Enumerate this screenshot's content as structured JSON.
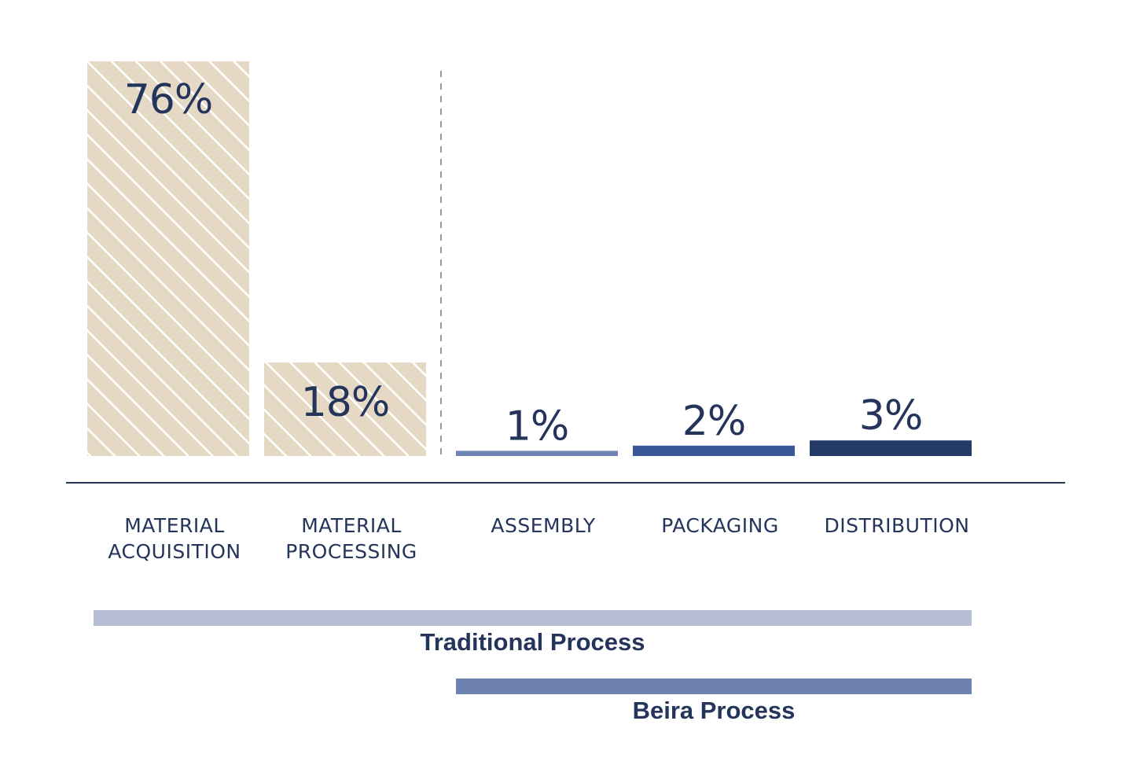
{
  "chart_data": {
    "type": "bar",
    "categories": [
      [
        "MATERIAL",
        "ACQUISITION"
      ],
      [
        "MATERIAL",
        "PROCESSING"
      ],
      [
        "ASSEMBLY"
      ],
      [
        "PACKAGING"
      ],
      [
        "DISTRIBUTION"
      ]
    ],
    "values": [
      76,
      18,
      1,
      2,
      3
    ],
    "value_labels": [
      "76%",
      "18%",
      "1%",
      "2%",
      "3%"
    ],
    "bar_styles": [
      "hatched",
      "hatched",
      "solid",
      "solid",
      "solid"
    ],
    "bar_colors": [
      "#e5d8c5",
      "#e5d8c5",
      "#6e84b4",
      "#3a5898",
      "#233966"
    ],
    "divider": "dashed line between MATERIAL PROCESSING and ASSEMBLY",
    "ylim": [
      0,
      76
    ],
    "grid": false,
    "process_ranges": [
      {
        "name": "Traditional Process",
        "from": "MATERIAL ACQUISITION",
        "to": "DISTRIBUTION",
        "color": "#b4bdd1"
      },
      {
        "name": "Beira Process",
        "from": "ASSEMBLY",
        "to": "DISTRIBUTION",
        "color": "#6e82b2"
      }
    ]
  },
  "colors": {
    "text": "#24345a",
    "axis": "#24345a",
    "divider": "#9a9a9a",
    "hatch_background": "#e5d8c5",
    "hatch_stripe": "#ffffff"
  }
}
